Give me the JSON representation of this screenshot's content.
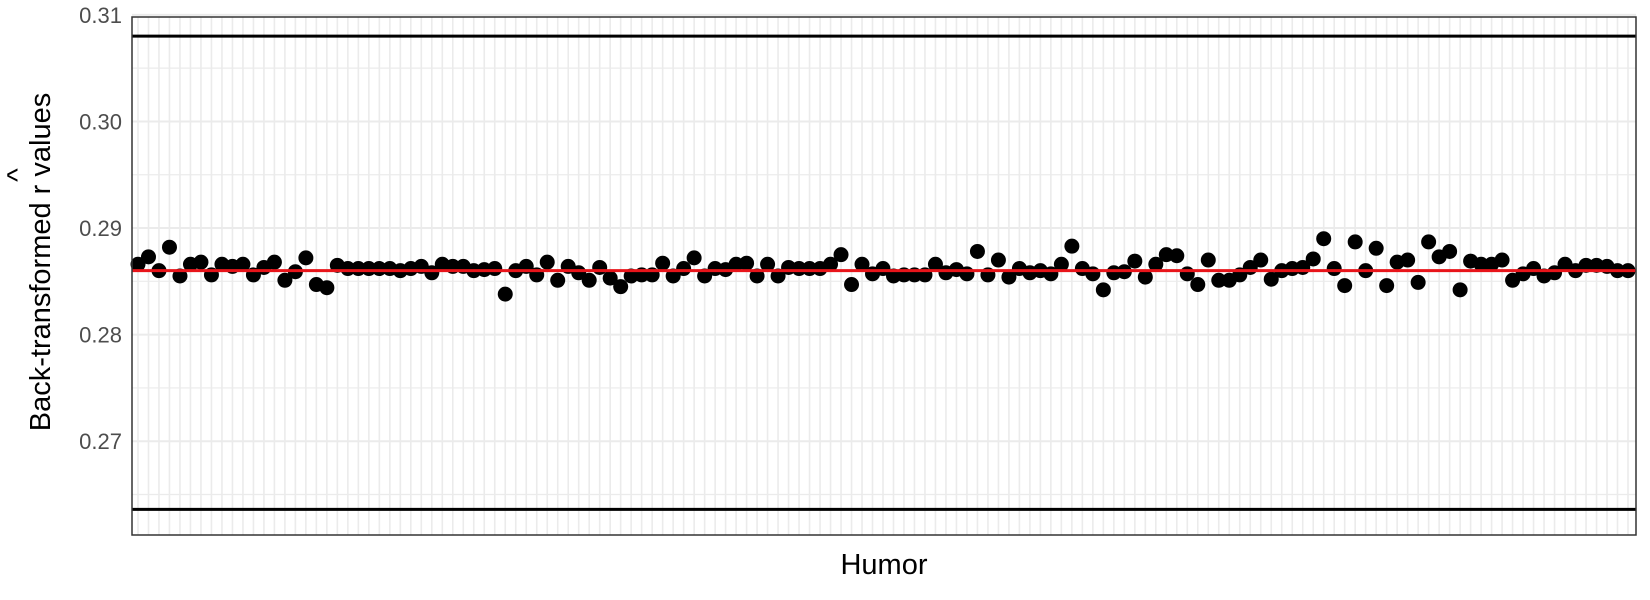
{
  "chart_data": {
    "type": "scatter",
    "xlabel": "Humor",
    "ylabel": "Back-transformed r values",
    "ylabel_hat": "^",
    "ylim": [
      0.2612,
      0.3098
    ],
    "yticks": [
      0.27,
      0.28,
      0.29,
      0.3,
      0.31
    ],
    "ytick_labels": [
      "0.27",
      "0.28",
      "0.29",
      "0.30",
      "0.31"
    ],
    "grid": true,
    "reference_lines": {
      "upper": 0.308,
      "lower": 0.2636
    },
    "mean_line": 0.286,
    "colors": {
      "points": "#000000",
      "mean_line": "#e8141a",
      "reference_lines": "#000000",
      "grid": "#ebebeb",
      "frame": "#333333"
    },
    "values": [
      0.2866,
      0.2873,
      0.286,
      0.2882,
      0.2855,
      0.2866,
      0.2868,
      0.2856,
      0.2866,
      0.2864,
      0.2866,
      0.2856,
      0.2863,
      0.2868,
      0.2851,
      0.2859,
      0.2872,
      0.2847,
      0.2844,
      0.2865,
      0.2862,
      0.2862,
      0.2862,
      0.2862,
      0.2862,
      0.286,
      0.2862,
      0.2864,
      0.2858,
      0.2866,
      0.2864,
      0.2864,
      0.286,
      0.2861,
      0.2862,
      0.2838,
      0.286,
      0.2864,
      0.2856,
      0.2868,
      0.2851,
      0.2864,
      0.2858,
      0.2851,
      0.2863,
      0.2853,
      0.2845,
      0.2855,
      0.2856,
      0.2856,
      0.2867,
      0.2855,
      0.2862,
      0.2872,
      0.2855,
      0.2862,
      0.2861,
      0.2866,
      0.2867,
      0.2855,
      0.2866,
      0.2855,
      0.2863,
      0.2862,
      0.2862,
      0.2862,
      0.2866,
      0.2875,
      0.2847,
      0.2866,
      0.2857,
      0.2862,
      0.2855,
      0.2856,
      0.2856,
      0.2856,
      0.2866,
      0.2858,
      0.2861,
      0.2857,
      0.2878,
      0.2856,
      0.287,
      0.2854,
      0.2862,
      0.2858,
      0.286,
      0.2857,
      0.2866,
      0.2883,
      0.2862,
      0.2857,
      0.2842,
      0.2858,
      0.2859,
      0.2869,
      0.2854,
      0.2866,
      0.2875,
      0.2874,
      0.2857,
      0.2847,
      0.287,
      0.2851,
      0.2851,
      0.2856,
      0.2863,
      0.287,
      0.2852,
      0.286,
      0.2862,
      0.2863,
      0.2871,
      0.289,
      0.2862,
      0.2846,
      0.2887,
      0.286,
      0.2881,
      0.2846,
      0.2868,
      0.287,
      0.2849,
      0.2887,
      0.2873,
      0.2878,
      0.2842,
      0.2869,
      0.2866,
      0.2866,
      0.287,
      0.2851,
      0.2857,
      0.2862,
      0.2855,
      0.2858,
      0.2866,
      0.286,
      0.2865,
      0.2865,
      0.2864,
      0.286,
      0.286
    ]
  }
}
